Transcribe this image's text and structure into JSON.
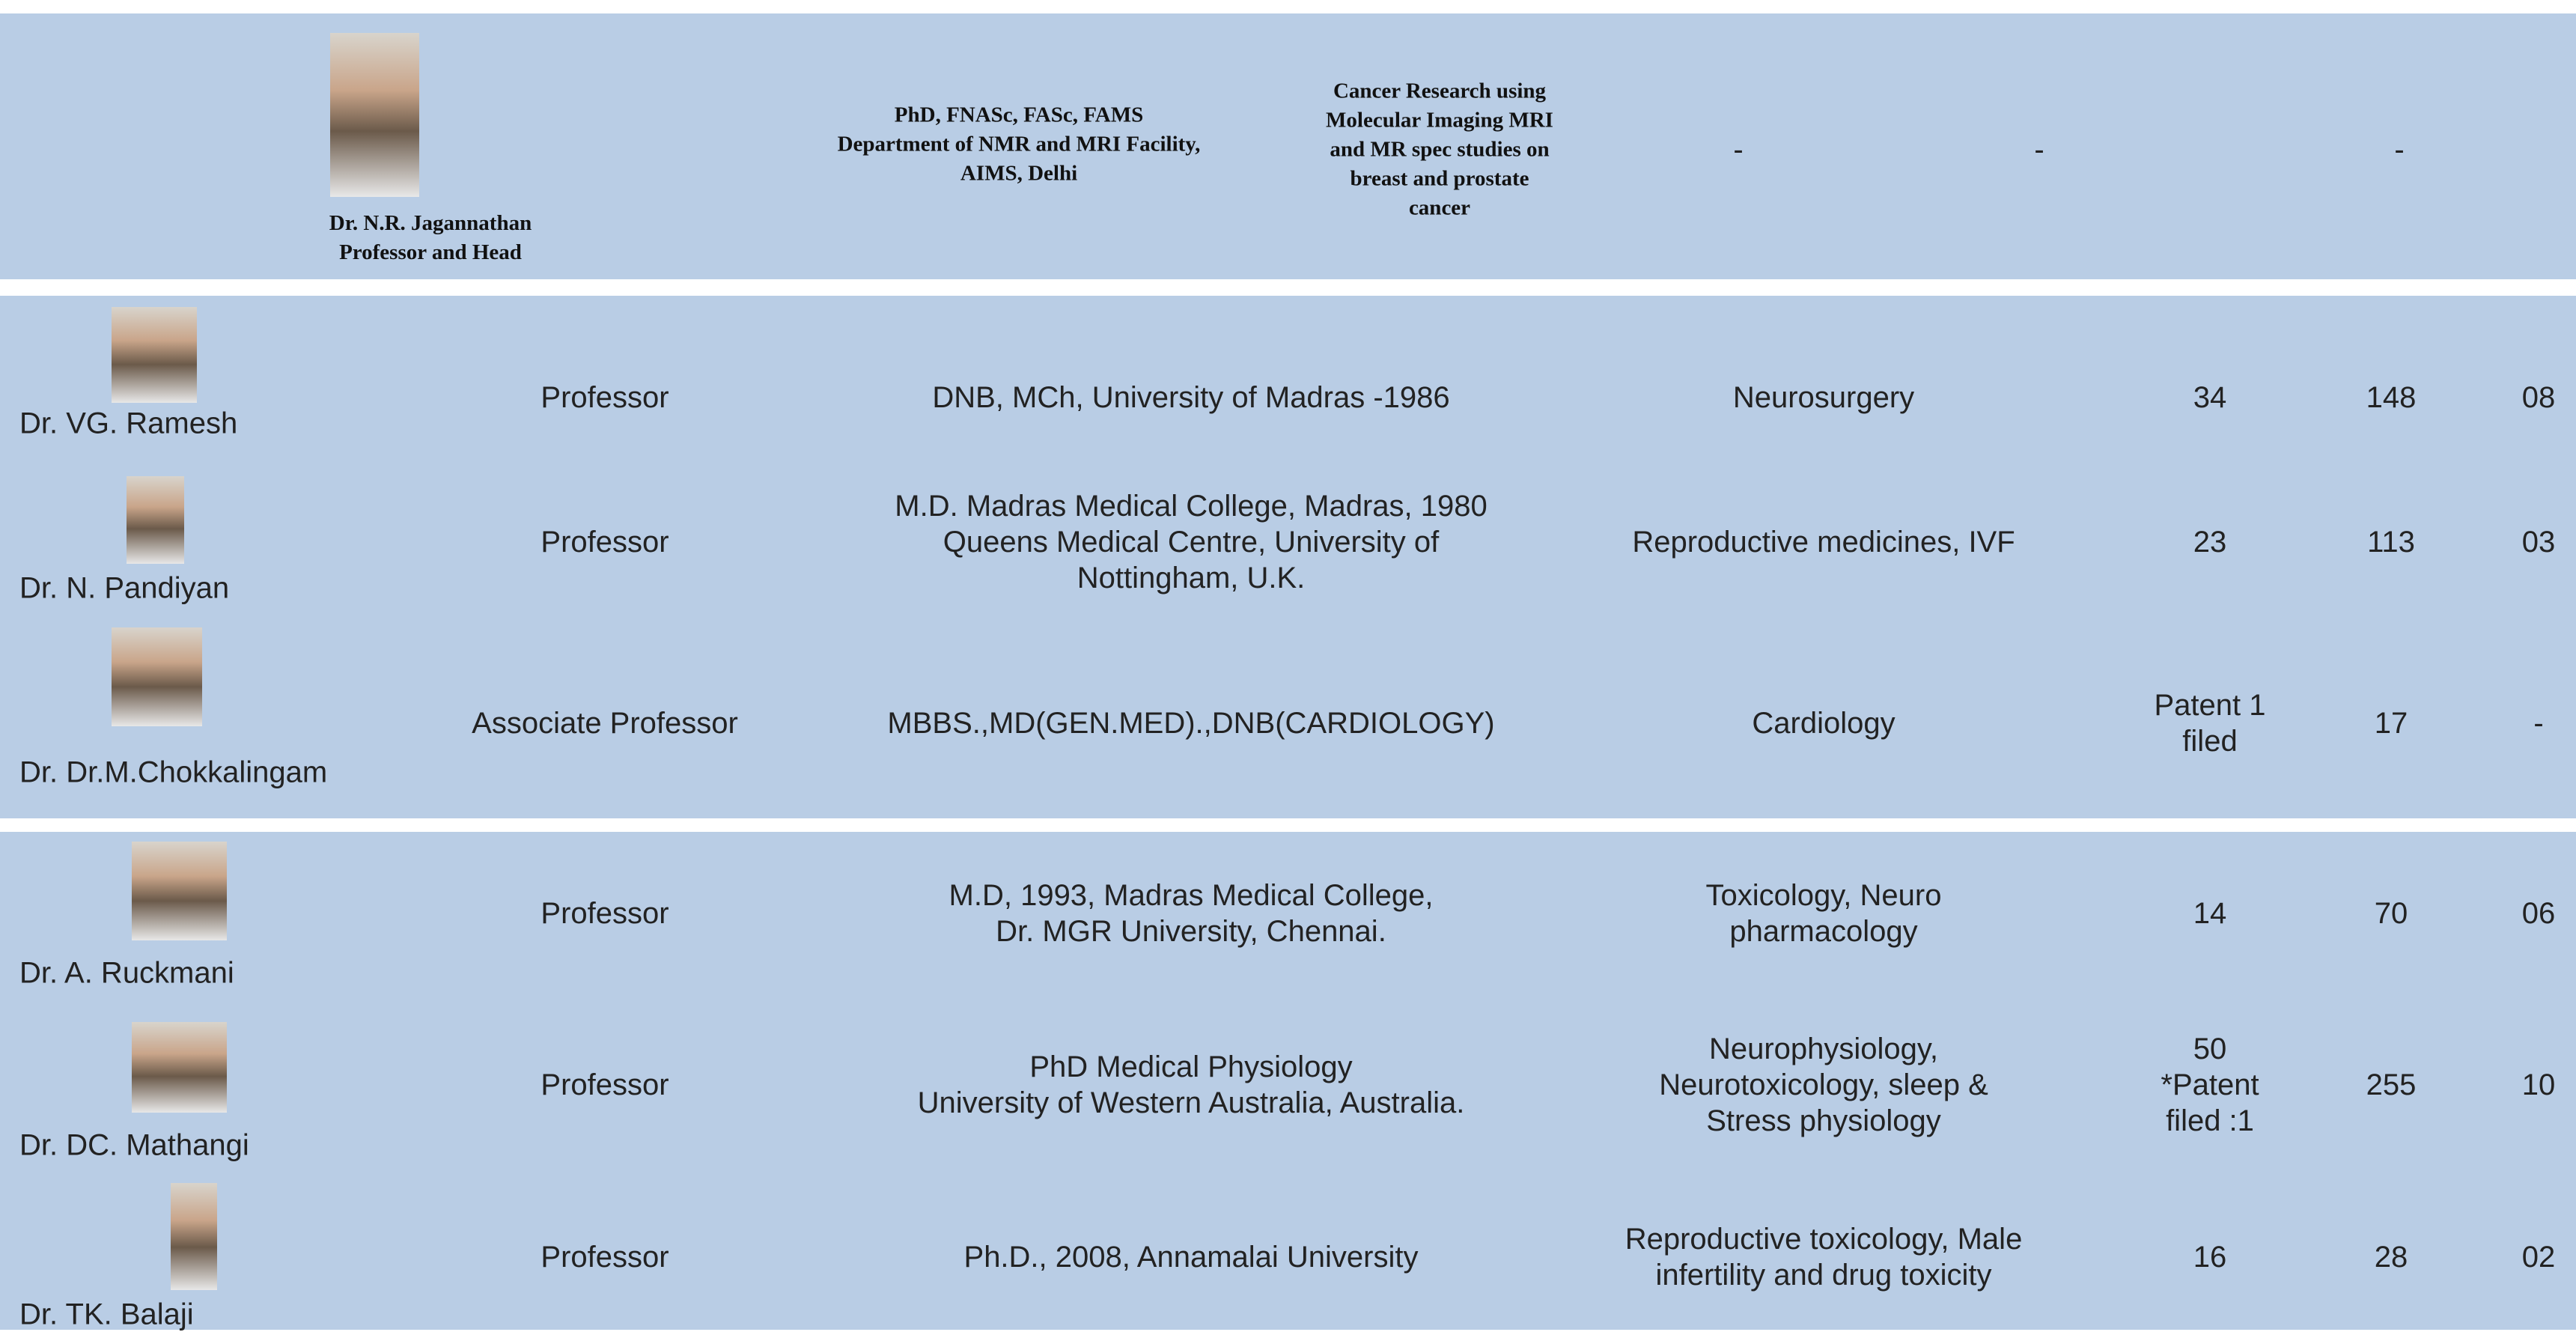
{
  "sections": [
    {
      "rows": [
        {
          "name": "Dr. N.R. Jagannathan",
          "title": "Professor and Head",
          "qualification": [
            "PhD, FNASc, FASc, FAMS",
            "Department of NMR and MRI Facility,",
            "AIMS, Delhi"
          ],
          "specialty": [
            "Cancer Research using",
            "Molecular Imaging MRI",
            "and MR spec studies on",
            "breast and prostate",
            "cancer"
          ],
          "stats": [
            [
              "-"
            ],
            [
              "-"
            ],
            [
              "-"
            ]
          ]
        }
      ]
    },
    {
      "rows": [
        {
          "name": "Dr. VG. Ramesh",
          "title": "Professor",
          "qualification": [
            "DNB, MCh, University of Madras -1986"
          ],
          "specialty": [
            "Neurosurgery"
          ],
          "stats": [
            [
              "34"
            ],
            [
              "148"
            ],
            [
              "08"
            ]
          ]
        },
        {
          "name": "Dr. N. Pandiyan",
          "title": "Professor",
          "qualification": [
            "M.D.  Madras Medical College, Madras, 1980",
            "Queens Medical Centre, University of",
            "Nottingham, U.K."
          ],
          "specialty": [
            "Reproductive medicines, IVF"
          ],
          "stats": [
            [
              "23"
            ],
            [
              "113"
            ],
            [
              "03"
            ]
          ]
        },
        {
          "name": "Dr. Dr.M.Chokkalingam",
          "title": "Associate Professor",
          "qualification": [
            "MBBS.,MD(GEN.MED).,DNB(CARDIOLOGY)"
          ],
          "specialty": [
            "Cardiology"
          ],
          "stats": [
            [
              "Patent 1",
              "filed"
            ],
            [
              "17"
            ],
            [
              "-"
            ]
          ]
        }
      ]
    },
    {
      "rows": [
        {
          "name": "Dr. A. Ruckmani",
          "title": "Professor",
          "qualification": [
            "M.D,  1993, Madras Medical College,",
            "Dr. MGR  University, Chennai."
          ],
          "specialty": [
            "Toxicology, Neuro",
            "pharmacology"
          ],
          "stats": [
            [
              "14"
            ],
            [
              "70"
            ],
            [
              "06"
            ]
          ]
        },
        {
          "name": "Dr. DC. Mathangi",
          "title": "Professor",
          "qualification": [
            "PhD Medical Physiology",
            "University of Western Australia, Australia."
          ],
          "specialty": [
            "Neurophysiology,",
            "Neurotoxicology, sleep &",
            "Stress physiology"
          ],
          "stats": [
            [
              "50",
              "*Patent",
              "filed :1"
            ],
            [
              "255"
            ],
            [
              "10"
            ]
          ]
        },
        {
          "name": "Dr. TK. Balaji",
          "title": "Professor",
          "qualification": [
            "Ph.D., 2008, Annamalai University"
          ],
          "specialty": [
            "Reproductive toxicology,  Male",
            "infertility and drug toxicity"
          ],
          "stats": [
            [
              "16"
            ],
            [
              "28"
            ],
            [
              "02"
            ]
          ]
        }
      ]
    }
  ]
}
